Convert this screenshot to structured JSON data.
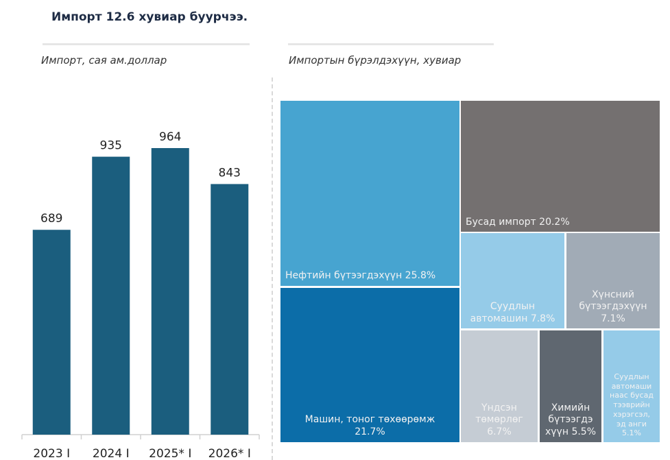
{
  "header": {
    "title": "Импорт 12.6 хувиар буурчээ."
  },
  "chart_data": [
    {
      "type": "bar",
      "title": "Импорт,  сая ам.доллар",
      "categories": [
        "2023 I",
        "2024 I",
        "2025* I",
        "2026* I"
      ],
      "values": [
        689,
        935,
        964,
        843
      ],
      "xlabel": "",
      "ylabel": "",
      "ylim": [
        0,
        1050
      ],
      "grid": false,
      "color": "#1b5e7e"
    },
    {
      "type": "treemap",
      "title": "Импортын бүрэлдэхүүн, хувиар",
      "items": [
        {
          "label": "Нефтийн бүтээгдэхүүн 25.8%",
          "name": "Нефтийн бүтээгдэхүүн",
          "value": 25.8,
          "color": "#47a4d0"
        },
        {
          "label": "Машин, тоног төхөөрөмж\n21.7%",
          "name": "Машин, тоног төхөөрөмж",
          "value": 21.7,
          "color": "#0c6da8"
        },
        {
          "label": "Бусад импорт 20.2%",
          "name": "Бусад импорт",
          "value": 20.2,
          "color": "#747070"
        },
        {
          "label": "Суудлын\nавтомашин 7.8%",
          "name": "Суудлын автомашин",
          "value": 7.8,
          "color": "#95cbe8"
        },
        {
          "label": "Хүнсний\nбүтээгдэхүүн\n7.1%",
          "name": "Хүнсний бүтээгдэхүүн",
          "value": 7.1,
          "color": "#a1abb6"
        },
        {
          "label": "Үндсэн\nтөмөрлөг\n6.7%",
          "name": "Үндсэн төмөрлөг",
          "value": 6.7,
          "color": "#c5ccd4"
        },
        {
          "label": "Химийн\nбүтээгдэ\nхүүн 5.5%",
          "name": "Химийн бүтээгдэхүүн",
          "value": 5.5,
          "color": "#5f6770"
        },
        {
          "label": "Суудлын\nавтомаши\nнаас бусад\nтээврийн\nхэрэгсэл,\nэд анги\n5.1%",
          "name": "Суудлын автомашинаас бусад тээврийн хэрэгсэл, эд анги",
          "value": 5.1,
          "color": "#95cbe8"
        }
      ]
    }
  ]
}
